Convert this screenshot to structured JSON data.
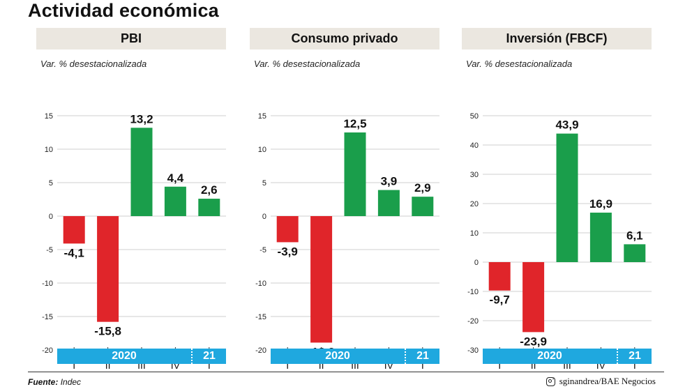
{
  "title": "Actividad económica",
  "subtitle": "Var. % desestacionalizada",
  "year_labels": [
    "2020",
    "21"
  ],
  "colors": {
    "positive": "#1a9e4b",
    "negative": "#e0252a",
    "year_bar": "#1fa8df",
    "header_bg": "#ebe7e0"
  },
  "footer": {
    "source_label": "Fuente:",
    "source_value": "Indec",
    "credit": "sginandrea/BAE Negocios",
    "credit_icon": "instagram-icon"
  },
  "chart_data": [
    {
      "type": "bar",
      "title": "PBI",
      "categories": [
        "I",
        "II",
        "III",
        "IV",
        "I"
      ],
      "values": [
        -4.1,
        -15.8,
        13.2,
        4.4,
        2.6
      ],
      "value_labels": [
        "-4,1",
        "-15,8",
        "13,2",
        "4,4",
        "2,6"
      ],
      "ylim": [
        -20,
        15
      ],
      "yticks": [
        15,
        10,
        5,
        0,
        -5,
        -10,
        -15,
        -20
      ],
      "grid": true
    },
    {
      "type": "bar",
      "title": "Consumo privado",
      "categories": [
        "I",
        "II",
        "III",
        "IV",
        "I"
      ],
      "values": [
        -3.9,
        -18.9,
        12.5,
        3.9,
        2.9
      ],
      "value_labels": [
        "-3,9",
        "-18,9",
        "12,5",
        "3,9",
        "2,9"
      ],
      "ylim": [
        -20,
        15
      ],
      "yticks": [
        15,
        10,
        5,
        0,
        -5,
        -10,
        -15,
        -20
      ],
      "grid": true
    },
    {
      "type": "bar",
      "title": "Inversión (FBCF)",
      "categories": [
        "I",
        "II",
        "III",
        "IV",
        "I"
      ],
      "values": [
        -9.7,
        -23.9,
        43.9,
        16.9,
        6.1
      ],
      "value_labels": [
        "-9,7",
        "-23,9",
        "43,9",
        "16,9",
        "6,1"
      ],
      "ylim": [
        -30,
        50
      ],
      "yticks": [
        50,
        40,
        30,
        20,
        10,
        0,
        -10,
        -20,
        -30
      ],
      "grid": true
    }
  ]
}
